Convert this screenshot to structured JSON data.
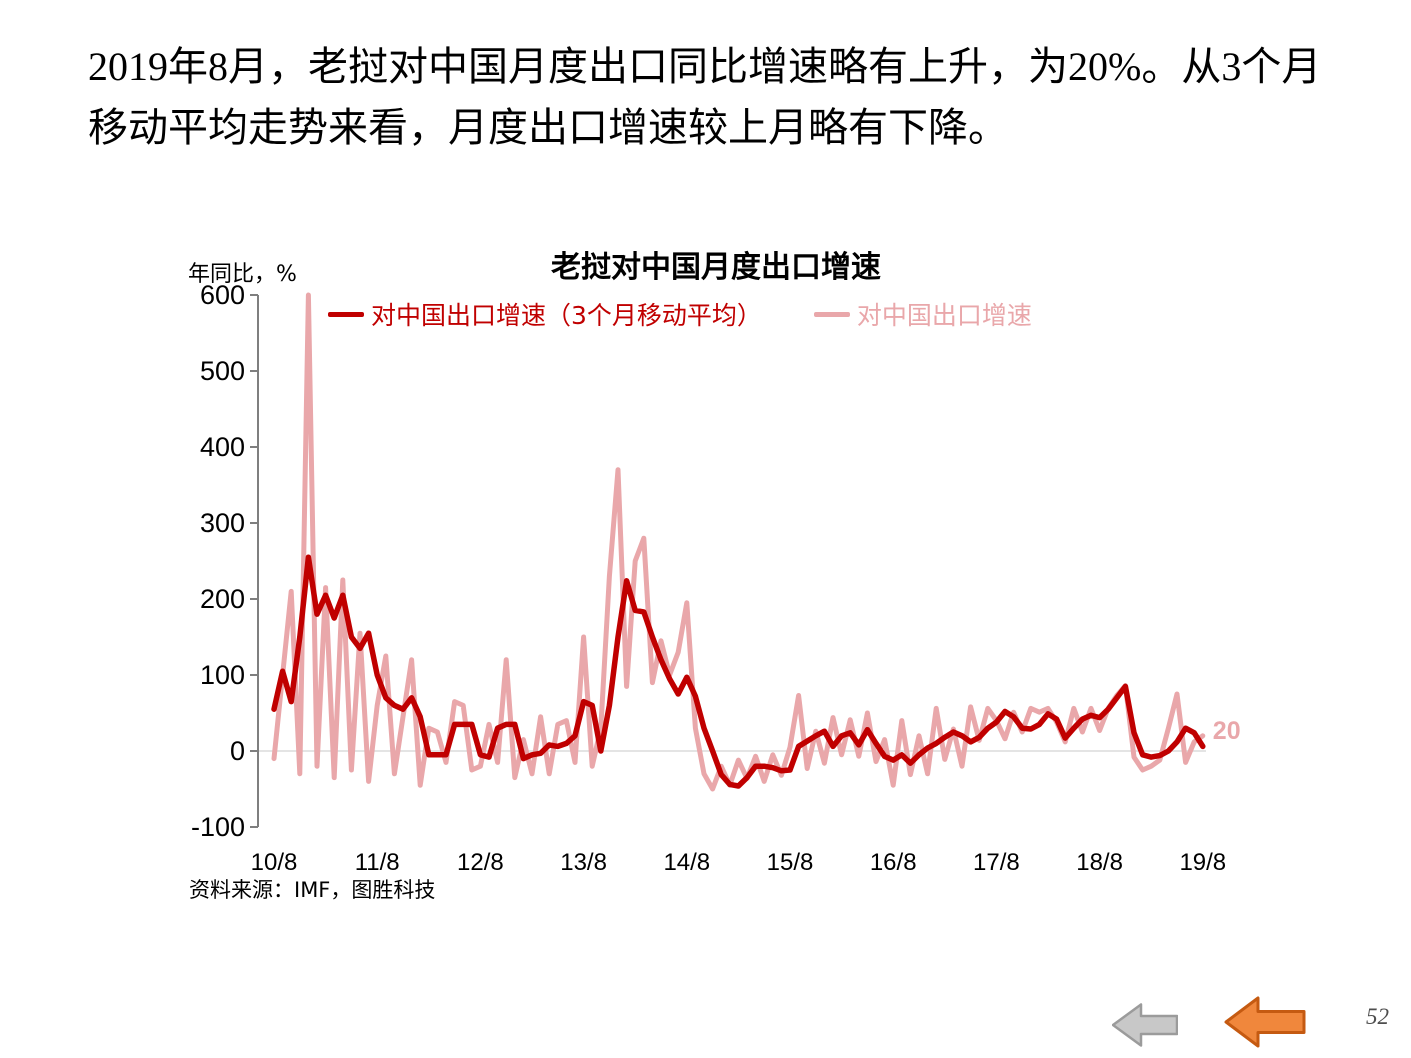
{
  "slide": {
    "paragraph_lines": [
      "2019年8月，老挝对中国月度出口同比增速略有上升，为20%。从3个月",
      "移动平均走势来看，月度出口增速较上月略有下降。"
    ],
    "source": "资料来源：IMF，图胜科技",
    "page_number": "52"
  },
  "chart": {
    "title": "老挝对中国月度出口增速",
    "y_unit_label": "年同比，%",
    "legend": [
      {
        "label": "对中国出口增速（3个月移动平均）",
        "color": "#C00000"
      },
      {
        "label": "对中国出口增速",
        "color": "#E9A7AA"
      }
    ]
  },
  "nav": {
    "arrows": [
      {
        "name": "back-gray",
        "fill": "#C8C8C8",
        "stroke": "#9B9B9B"
      },
      {
        "name": "back-orange",
        "fill": "#F0873C",
        "stroke": "#C55A11"
      }
    ]
  },
  "chart_data": {
    "type": "line",
    "title": "老挝对中国月度出口增速",
    "ylabel": "年同比，%",
    "ylim": [
      -100,
      600
    ],
    "y_tick_labels": [
      600,
      500,
      400,
      300,
      200,
      100,
      0,
      -100
    ],
    "x_tick_labels": [
      "10/8",
      "11/8",
      "12/8",
      "13/8",
      "14/8",
      "15/8",
      "16/8",
      "17/8",
      "18/8",
      "19/8"
    ],
    "x_start_month": "2010-08",
    "x_end_month": "2019-08",
    "x_interval": "monthly",
    "grid": "zero-line-only",
    "legend_position": "top",
    "axis_color": "#7F7F7F",
    "zero_line_color": "#D3D3D3",
    "annotation": {
      "text": "20",
      "series": "对中国出口增速",
      "month": "2019-08",
      "value": 20
    },
    "series": [
      {
        "name": "对中国出口增速（3个月移动平均）",
        "color": "#C00000",
        "values": [
          55,
          105,
          65,
          150,
          255,
          180,
          205,
          175,
          205,
          150,
          135,
          155,
          100,
          70,
          60,
          55,
          70,
          45,
          -5,
          -5,
          -5,
          35,
          35,
          35,
          -5,
          -8,
          30,
          35,
          35,
          -10,
          -5,
          -3,
          8,
          6,
          10,
          20,
          65,
          60,
          0,
          60,
          150,
          224,
          185,
          183,
          150,
          120,
          95,
          75,
          97,
          72,
          30,
          0,
          -31,
          -44,
          -46,
          -35,
          -20,
          -20,
          -22,
          -26,
          -25,
          6,
          13,
          20,
          26,
          6,
          20,
          24,
          8,
          28,
          10,
          -7,
          -12,
          -5,
          -16,
          -5,
          4,
          10,
          18,
          25,
          20,
          12,
          18,
          30,
          38,
          52,
          45,
          30,
          29,
          35,
          49,
          42,
          17,
          30,
          42,
          47,
          44,
          55,
          70,
          85,
          24,
          -5,
          -8,
          -6,
          0,
          12,
          30,
          24,
          6
        ]
      },
      {
        "name": "对中国出口增速",
        "color": "#E9A7AA",
        "values": [
          -10,
          100,
          210,
          -30,
          600,
          -20,
          215,
          -35,
          225,
          -25,
          155,
          -40,
          60,
          125,
          -30,
          45,
          120,
          -45,
          30,
          25,
          -15,
          65,
          60,
          -25,
          -20,
          35,
          -15,
          120,
          -35,
          15,
          -30,
          45,
          -30,
          35,
          40,
          -15,
          150,
          -20,
          30,
          230,
          370,
          85,
          250,
          280,
          90,
          145,
          100,
          130,
          195,
          30,
          -30,
          -50,
          -20,
          -45,
          -12,
          -36,
          -7,
          -40,
          -5,
          -32,
          5,
          73,
          -23,
          26,
          -16,
          44,
          -5,
          41,
          -7,
          50,
          -14,
          15,
          -45,
          40,
          -31,
          20,
          -30,
          56,
          -11,
          29,
          -20,
          58,
          14,
          56,
          40,
          16,
          51,
          25,
          56,
          51,
          56,
          38,
          12,
          56,
          25,
          56,
          27,
          56,
          73,
          86,
          -8,
          -25,
          -20,
          -12,
          30,
          75,
          -15,
          12,
          20
        ]
      }
    ]
  }
}
